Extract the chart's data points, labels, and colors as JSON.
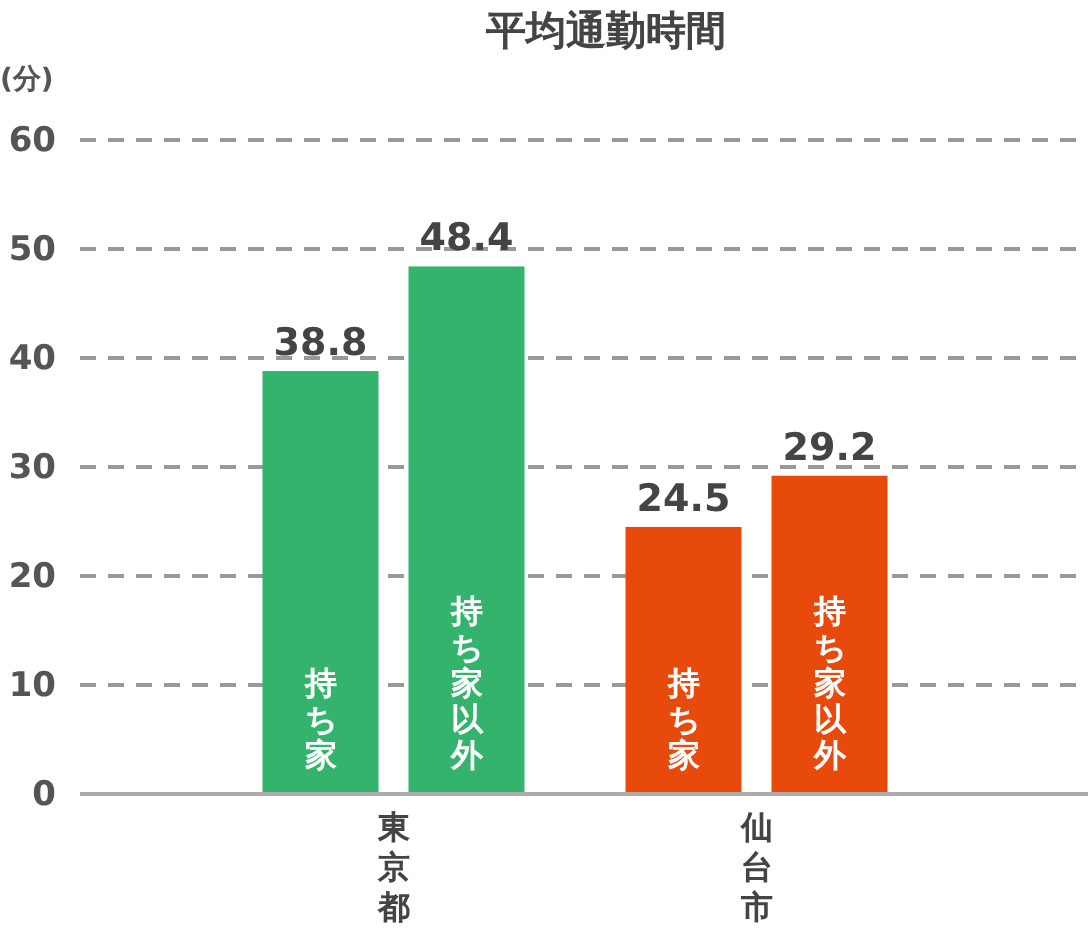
{
  "chart_data": {
    "type": "bar",
    "title": "平均通勤時間",
    "ylabel": "(分)",
    "categories": [
      "東京都",
      "仙台市"
    ],
    "series": [
      {
        "name": "持ち家",
        "colors": [
          "#33b36b",
          "#e84a0c"
        ],
        "values": [
          38.8,
          24.5
        ]
      },
      {
        "name": "持ち家以外",
        "colors": [
          "#33b36b",
          "#e84a0c"
        ],
        "values": [
          48.4,
          29.2
        ]
      }
    ],
    "ylim": [
      0,
      60
    ],
    "yticks": [
      0,
      10,
      20,
      30,
      40,
      50,
      60
    ],
    "grid": "y",
    "line_style": "dashed",
    "data_labels": true
  }
}
